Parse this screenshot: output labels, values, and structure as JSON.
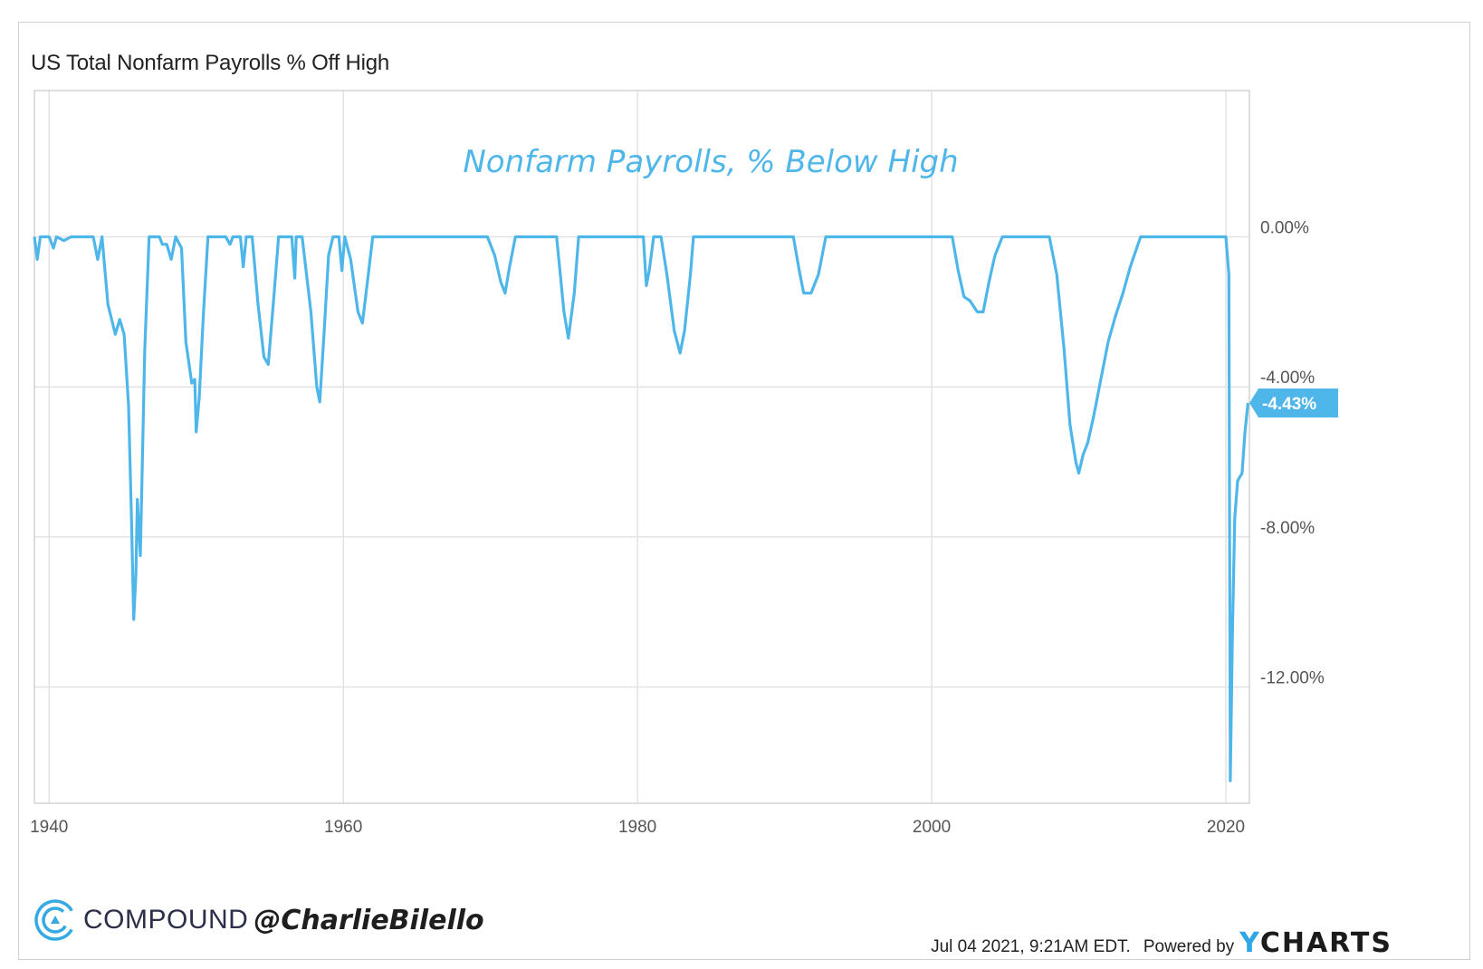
{
  "page": {
    "title": "US Total Nonfarm Payrolls % Off High"
  },
  "chart_data": {
    "type": "line",
    "title": "US Total Nonfarm Payrolls % Off High",
    "annotation": "Nonfarm Payrolls, % Below High",
    "series": [
      {
        "name": "",
        "color": "#4fb6ea",
        "last_value_label": "-4.43%",
        "points": [
          [
            1939.0,
            0
          ],
          [
            1939.2,
            -0.6
          ],
          [
            1939.4,
            0
          ],
          [
            1940.0,
            0
          ],
          [
            1940.3,
            -0.3
          ],
          [
            1940.5,
            0
          ],
          [
            1941.0,
            -0.1
          ],
          [
            1941.5,
            0
          ],
          [
            1943.0,
            0
          ],
          [
            1943.3,
            -0.6
          ],
          [
            1943.6,
            0
          ],
          [
            1944.0,
            -1.8
          ],
          [
            1944.5,
            -2.6
          ],
          [
            1944.8,
            -2.2
          ],
          [
            1945.1,
            -2.6
          ],
          [
            1945.4,
            -4.5
          ],
          [
            1945.6,
            -7.5
          ],
          [
            1945.75,
            -10.2
          ],
          [
            1945.9,
            -9.0
          ],
          [
            1946.0,
            -7.0
          ],
          [
            1946.2,
            -8.5
          ],
          [
            1946.5,
            -3.0
          ],
          [
            1946.8,
            0
          ],
          [
            1947.5,
            0
          ],
          [
            1947.7,
            -0.2
          ],
          [
            1948.0,
            -0.2
          ],
          [
            1948.3,
            -0.6
          ],
          [
            1948.6,
            0
          ],
          [
            1949.0,
            -0.3
          ],
          [
            1949.3,
            -2.8
          ],
          [
            1949.7,
            -3.9
          ],
          [
            1949.9,
            -3.8
          ],
          [
            1950.0,
            -5.2
          ],
          [
            1950.2,
            -4.3
          ],
          [
            1950.5,
            -2.0
          ],
          [
            1950.8,
            0
          ],
          [
            1952.0,
            0
          ],
          [
            1952.3,
            -0.2
          ],
          [
            1952.5,
            0
          ],
          [
            1953.0,
            0
          ],
          [
            1953.2,
            -0.8
          ],
          [
            1953.4,
            0
          ],
          [
            1953.8,
            0
          ],
          [
            1954.2,
            -1.8
          ],
          [
            1954.6,
            -3.2
          ],
          [
            1954.9,
            -3.4
          ],
          [
            1955.3,
            -1.5
          ],
          [
            1955.6,
            0
          ],
          [
            1956.5,
            0
          ],
          [
            1956.7,
            -1.1
          ],
          [
            1956.8,
            0
          ],
          [
            1957.2,
            0
          ],
          [
            1957.8,
            -2.0
          ],
          [
            1958.2,
            -4.0
          ],
          [
            1958.4,
            -4.4
          ],
          [
            1958.7,
            -2.5
          ],
          [
            1959.0,
            -0.5
          ],
          [
            1959.3,
            0
          ],
          [
            1959.7,
            0
          ],
          [
            1959.9,
            -0.9
          ],
          [
            1960.1,
            0
          ],
          [
            1960.5,
            -0.6
          ],
          [
            1961.0,
            -2.0
          ],
          [
            1961.3,
            -2.3
          ],
          [
            1961.7,
            -1.0
          ],
          [
            1962.0,
            0
          ],
          [
            1969.8,
            0
          ],
          [
            1970.3,
            -0.5
          ],
          [
            1970.7,
            -1.2
          ],
          [
            1971.0,
            -1.5
          ],
          [
            1971.3,
            -0.8
          ],
          [
            1971.7,
            0
          ],
          [
            1974.5,
            0
          ],
          [
            1975.0,
            -2.0
          ],
          [
            1975.3,
            -2.7
          ],
          [
            1975.7,
            -1.5
          ],
          [
            1976.0,
            0
          ],
          [
            1980.4,
            0
          ],
          [
            1980.6,
            -1.3
          ],
          [
            1980.8,
            -0.9
          ],
          [
            1981.1,
            0
          ],
          [
            1981.6,
            0
          ],
          [
            1982.0,
            -1.0
          ],
          [
            1982.5,
            -2.5
          ],
          [
            1982.9,
            -3.1
          ],
          [
            1983.2,
            -2.5
          ],
          [
            1983.6,
            -1.0
          ],
          [
            1983.8,
            0
          ],
          [
            1990.6,
            0
          ],
          [
            1991.0,
            -0.9
          ],
          [
            1991.3,
            -1.5
          ],
          [
            1991.8,
            -1.5
          ],
          [
            1992.3,
            -1.0
          ],
          [
            1992.8,
            0
          ],
          [
            2001.4,
            0
          ],
          [
            2001.8,
            -0.9
          ],
          [
            2002.2,
            -1.6
          ],
          [
            2002.6,
            -1.7
          ],
          [
            2003.1,
            -2.0
          ],
          [
            2003.5,
            -2.0
          ],
          [
            2003.9,
            -1.2
          ],
          [
            2004.3,
            -0.5
          ],
          [
            2004.8,
            0
          ],
          [
            2008.0,
            0
          ],
          [
            2008.5,
            -1.0
          ],
          [
            2009.0,
            -3.0
          ],
          [
            2009.4,
            -5.0
          ],
          [
            2009.8,
            -6.0
          ],
          [
            2010.0,
            -6.3
          ],
          [
            2010.3,
            -5.8
          ],
          [
            2010.6,
            -5.5
          ],
          [
            2011.0,
            -4.8
          ],
          [
            2011.5,
            -3.8
          ],
          [
            2012.0,
            -2.8
          ],
          [
            2012.5,
            -2.1
          ],
          [
            2013.0,
            -1.5
          ],
          [
            2013.5,
            -0.8
          ],
          [
            2014.2,
            0
          ],
          [
            2020.0,
            0
          ],
          [
            2020.2,
            -1.0
          ],
          [
            2020.3,
            -14.5
          ],
          [
            2020.45,
            -10.5
          ],
          [
            2020.6,
            -7.5
          ],
          [
            2020.8,
            -6.5
          ],
          [
            2021.1,
            -6.3
          ],
          [
            2021.3,
            -5.2
          ],
          [
            2021.5,
            -4.43
          ]
        ]
      }
    ],
    "x_ticks": [
      "1940",
      "1960",
      "1980",
      "2000",
      "2020"
    ],
    "x_tick_values": [
      1940,
      1960,
      1980,
      2000,
      2020
    ],
    "y_ticks": [
      "0.00%",
      "-4.00%",
      "-8.00%",
      "-12.00%"
    ],
    "y_tick_values": [
      0,
      -4,
      -8,
      -12
    ],
    "xlim": [
      1939.0,
      2021.6
    ],
    "ylim": [
      -15.1,
      3.9
    ],
    "grid": true,
    "y_axis_side": "right"
  },
  "footer": {
    "brand_name": "COMPOUND",
    "handle": "@CharlieBilello",
    "timestamp": "Jul 04 2021, 9:21AM EDT.",
    "powered_by": "Powered by",
    "ycharts_y": "Y",
    "ycharts_rest": "CHARTS"
  }
}
